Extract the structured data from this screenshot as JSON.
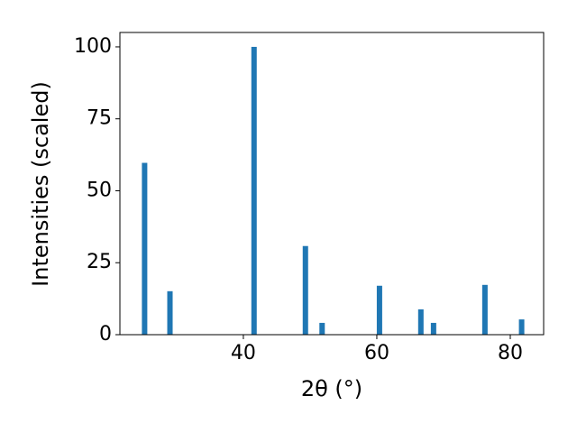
{
  "chart_data": {
    "type": "bar",
    "xlabel": "2θ (°)",
    "ylabel": "Intensities (scaled)",
    "x": [
      25.2,
      29.0,
      41.6,
      49.3,
      51.8,
      60.4,
      66.6,
      68.5,
      76.2,
      81.7
    ],
    "values": [
      59.7,
      15.1,
      100,
      30.8,
      4.1,
      17,
      8.8,
      4.1,
      17.3,
      5.3
    ],
    "color": "#1f77b4",
    "xlim": [
      21.5,
      85
    ],
    "xticks": [
      40,
      60,
      80
    ],
    "ylim": [
      0,
      105
    ],
    "yticks": [
      0,
      25,
      50,
      75,
      100
    ]
  }
}
